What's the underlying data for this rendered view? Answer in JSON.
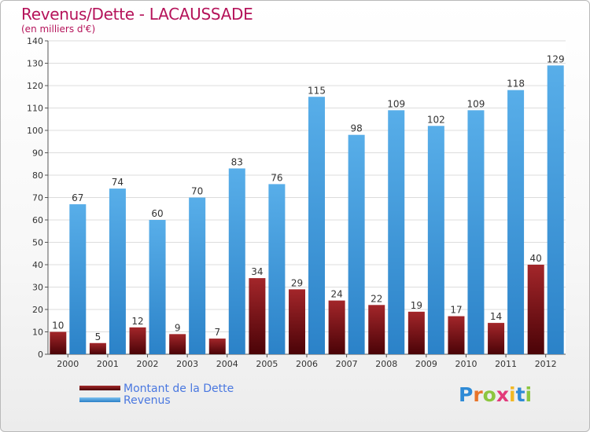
{
  "title": "Revenus/Dette - LACAUSSADE",
  "subtitle": "(en milliers d'€)",
  "colors": {
    "dette": "#6e0a0e",
    "revenus": "#3d98dc",
    "title": "#b5135a"
  },
  "chart_data": {
    "type": "bar",
    "categories": [
      "2000",
      "2001",
      "2002",
      "2003",
      "2004",
      "2005",
      "2006",
      "2007",
      "2008",
      "2009",
      "2010",
      "2011",
      "2012"
    ],
    "series": [
      {
        "name": "Montant de la Dette",
        "values": [
          10,
          5,
          12,
          9,
          7,
          34,
          29,
          24,
          22,
          19,
          17,
          14,
          40
        ]
      },
      {
        "name": "Revenus",
        "values": [
          67,
          74,
          60,
          70,
          83,
          76,
          115,
          98,
          109,
          102,
          109,
          118,
          129
        ]
      }
    ],
    "ylim": [
      0,
      140
    ],
    "yticks": [
      0,
      10,
      20,
      30,
      40,
      50,
      60,
      70,
      80,
      90,
      100,
      110,
      120,
      130,
      140
    ],
    "grid": true,
    "legend": "bottom-left"
  },
  "legend": {
    "items": [
      {
        "label": "Montant de la Dette",
        "color": "#6e0a0e"
      },
      {
        "label": "Revenus",
        "color": "#3d98dc"
      }
    ]
  },
  "logo": {
    "text": "Proxiti",
    "letter_colors": [
      "#2e8ad6",
      "#e8742a",
      "#8cc63f",
      "#e23a7a",
      "#f2b824",
      "#2e8ad6",
      "#8cc63f"
    ]
  }
}
